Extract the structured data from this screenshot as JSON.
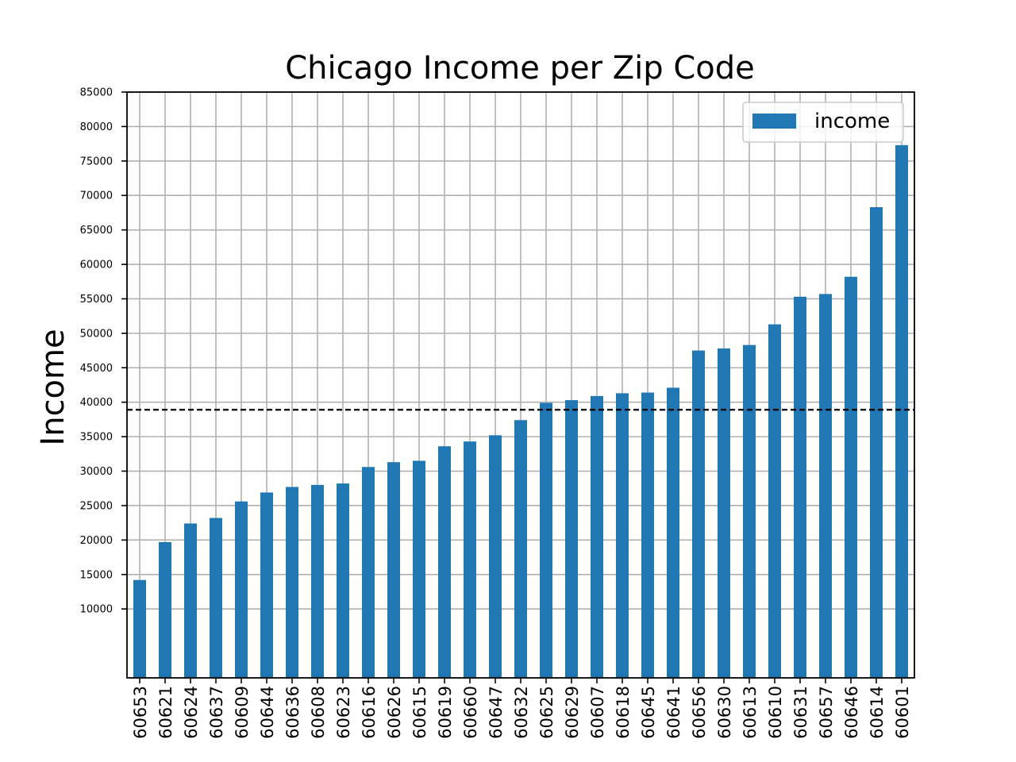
{
  "chart_data": {
    "type": "bar",
    "title": "Chicago Income per Zip Code",
    "xlabel": "",
    "ylabel": "Income",
    "categories": [
      "60653",
      "60621",
      "60624",
      "60637",
      "60609",
      "60644",
      "60636",
      "60608",
      "60623",
      "60616",
      "60626",
      "60615",
      "60619",
      "60660",
      "60647",
      "60632",
      "60625",
      "60629",
      "60607",
      "60618",
      "60645",
      "60641",
      "60656",
      "60630",
      "60613",
      "60610",
      "60631",
      "60657",
      "60646",
      "60614",
      "60601"
    ],
    "series": [
      {
        "name": "income",
        "color": "#1f77b4",
        "values": [
          14200,
          19700,
          22400,
          23200,
          25600,
          26900,
          27700,
          28000,
          28200,
          30600,
          31300,
          31500,
          33600,
          34300,
          35200,
          37400,
          39900,
          40300,
          40900,
          41300,
          41400,
          42100,
          47500,
          47800,
          48300,
          51300,
          55300,
          55700,
          58200,
          68300,
          77300
        ]
      }
    ],
    "reference_line": {
      "value": 38900,
      "style": "dashed",
      "color": "#000000"
    },
    "yticks": [
      10000,
      15000,
      20000,
      25000,
      30000,
      35000,
      40000,
      45000,
      50000,
      55000,
      60000,
      65000,
      70000,
      75000,
      80000,
      85000
    ],
    "ylim": [
      0,
      85000
    ],
    "grid": true,
    "legend_position": "top-right"
  }
}
